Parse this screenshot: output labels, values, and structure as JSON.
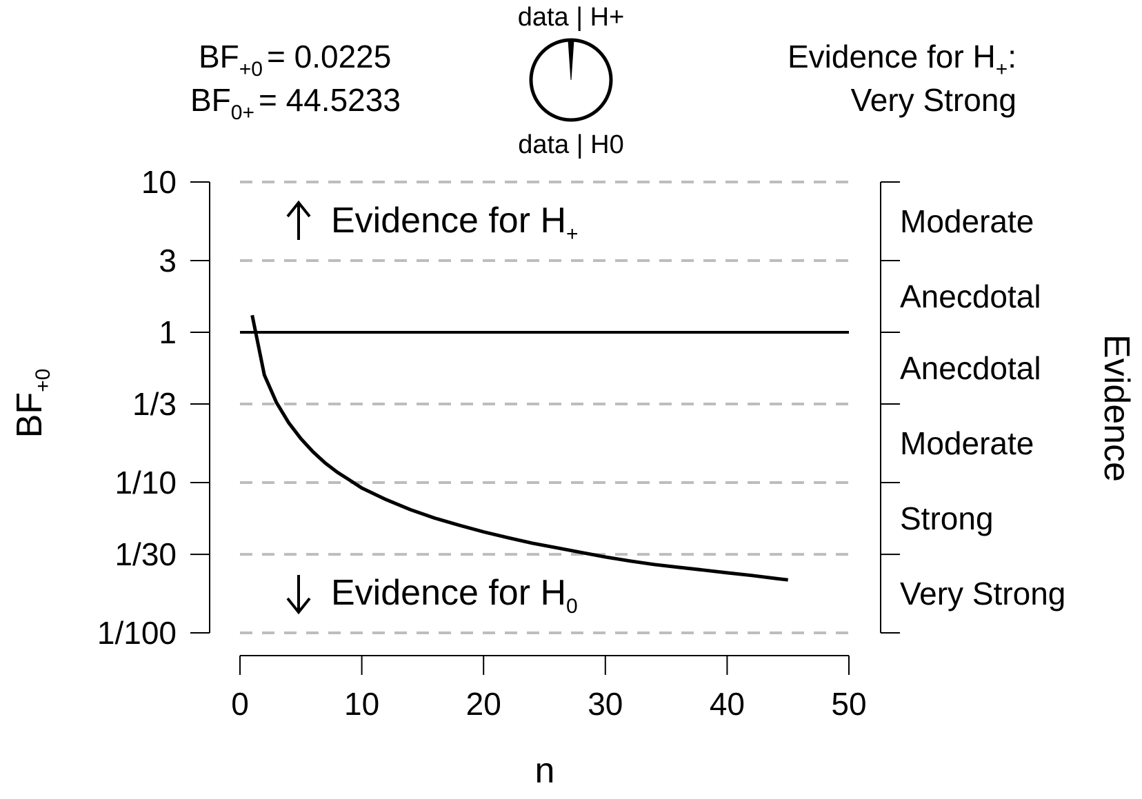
{
  "chart_data": {
    "type": "line",
    "x_axis": {
      "label": "n",
      "range": [
        0,
        50
      ],
      "ticks": [
        "0",
        "10",
        "20",
        "30",
        "40",
        "50"
      ]
    },
    "y_axis": {
      "label": "BF",
      "label_sub": "+0",
      "scale": "log",
      "range": [
        0.01,
        10
      ],
      "ticks": [
        {
          "label": "10",
          "value": 10
        },
        {
          "label": "3",
          "value": 3
        },
        {
          "label": "1",
          "value": 1
        },
        {
          "label": "1/3",
          "value": 0.3333
        },
        {
          "label": "1/10",
          "value": 0.1
        },
        {
          "label": "1/30",
          "value": 0.0333
        },
        {
          "label": "1/100",
          "value": 0.01
        }
      ]
    },
    "right_axis": {
      "label": "Evidence",
      "categories": [
        "Moderate",
        "Anecdotal",
        "Anecdotal",
        "Moderate",
        "Strong",
        "Very Strong"
      ]
    },
    "reference_line_y": 1,
    "gridlines_y": [
      10,
      3,
      0.3333,
      0.1,
      0.0333,
      0.01
    ],
    "series": [
      {
        "x": [
          1,
          2,
          3,
          4,
          5,
          6,
          7,
          8,
          9,
          10,
          12,
          14,
          16,
          18,
          20,
          22,
          24,
          26,
          28,
          30,
          32,
          34,
          36,
          38,
          40,
          42,
          44,
          45
        ],
        "y": [
          1.3,
          0.52,
          0.34,
          0.25,
          0.196,
          0.16,
          0.135,
          0.117,
          0.104,
          0.092,
          0.077,
          0.066,
          0.058,
          0.052,
          0.047,
          0.043,
          0.0395,
          0.0368,
          0.0343,
          0.032,
          0.0301,
          0.0285,
          0.0273,
          0.0262,
          0.0251,
          0.0241,
          0.023,
          0.0225
        ]
      }
    ],
    "annotations": {
      "upper_arrow_text": "Evidence for H",
      "upper_arrow_sub": "+",
      "lower_arrow_text": "Evidence for H",
      "lower_arrow_sub": "0"
    },
    "pie": {
      "top_label": "data | H+",
      "bottom_label": "data | H0",
      "fraction_h_plus": 0.022
    },
    "stats": {
      "bf_plus0_name": "BF",
      "bf_plus0_sub": "+0",
      "bf_plus0_value": "= 0.0225",
      "bf_0plus_name": "BF",
      "bf_0plus_sub": "0+",
      "bf_0plus_value": "= 44.5233"
    },
    "evidence_summary": {
      "line1_text": "Evidence for H",
      "line1_sub": "+",
      "line1_suffix": ":",
      "line2": "Very Strong"
    }
  }
}
